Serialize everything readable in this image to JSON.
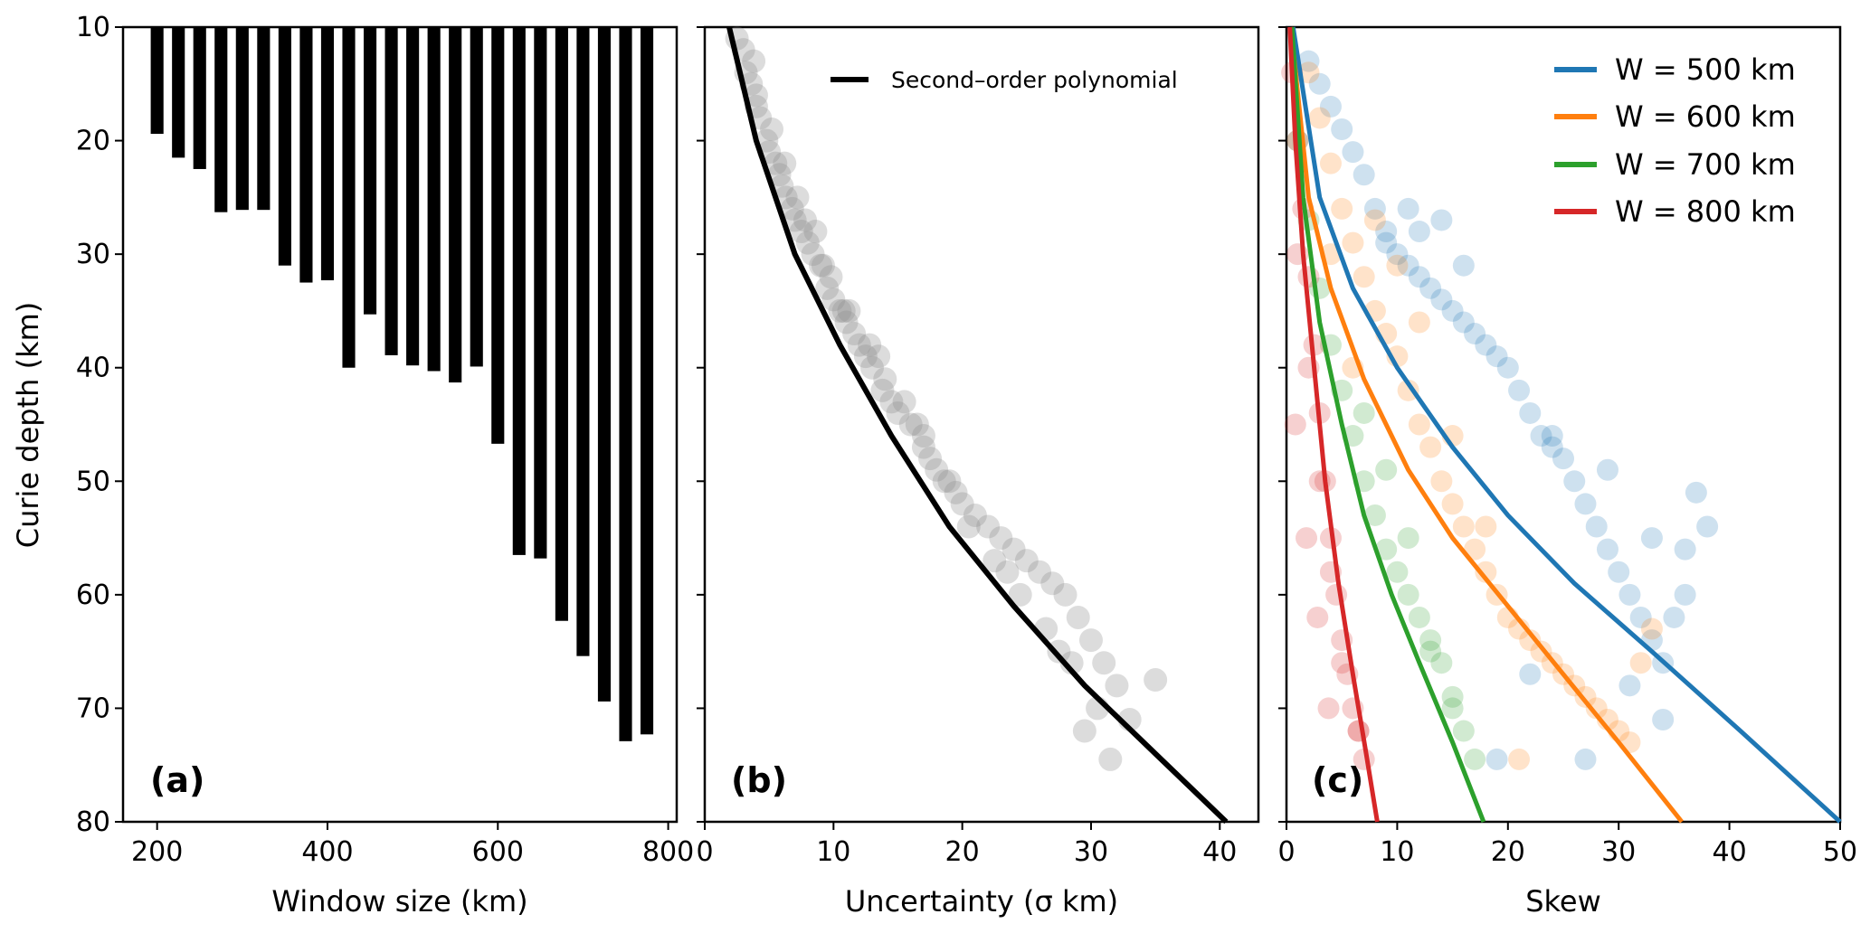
{
  "figure": {
    "ylabel": "Curie depth (km)"
  },
  "colors": {
    "bars": "#000000",
    "scatter_gray": "#8c8c8c",
    "fit_line": "#000000",
    "w500": "#1f77b4",
    "w600": "#ff7f0e",
    "w700": "#2ca02c",
    "w800": "#d62728"
  },
  "chart_data": [
    {
      "type": "bar",
      "panel_label": "(a)",
      "xlabel": "Window size (km)",
      "ylabel": "Curie depth (km)",
      "xlim": [
        160,
        810
      ],
      "ylim": [
        80,
        10
      ],
      "y_inverted": true,
      "xticks": [
        200,
        400,
        600,
        800
      ],
      "yticks": [
        10,
        20,
        30,
        40,
        50,
        60,
        70,
        80
      ],
      "categories": [
        200,
        225,
        250,
        275,
        300,
        325,
        350,
        375,
        400,
        425,
        450,
        475,
        500,
        525,
        550,
        575,
        600,
        625,
        650,
        675,
        700,
        725,
        750,
        775
      ],
      "values": [
        19.4,
        21.5,
        22.5,
        26.3,
        26.1,
        26.1,
        31.0,
        32.5,
        32.3,
        40.0,
        35.3,
        38.9,
        39.8,
        40.3,
        41.3,
        39.9,
        46.7,
        56.5,
        56.8,
        62.3,
        65.4,
        69.4,
        72.9,
        72.3
      ]
    },
    {
      "type": "scatter",
      "panel_label": "(b)",
      "xlabel": "Uncertainty (σ km)",
      "xlim": [
        0,
        43
      ],
      "ylim": [
        80,
        10
      ],
      "y_inverted": true,
      "xticks": [
        0,
        10,
        20,
        30,
        40
      ],
      "legend": [
        "Second–order polynomial"
      ],
      "legend_position": "top-right",
      "fit_curve": {
        "name": "Second–order polynomial",
        "x": [
          1.9,
          4.0,
          7.0,
          10.5,
          14.5,
          19.0,
          24.0,
          29.5,
          35.0,
          40.5
        ],
        "y": [
          10,
          20,
          30,
          38,
          46,
          54,
          61,
          68,
          74,
          80
        ]
      },
      "points_x": [
        2.5,
        3.0,
        3.2,
        3.6,
        4.0,
        4.3,
        4.8,
        5.0,
        5.5,
        6.0,
        6.3,
        6.8,
        7.0,
        7.5,
        8.0,
        8.4,
        9.0,
        9.5,
        10.0,
        10.5,
        11.0,
        11.6,
        12.0,
        12.5,
        13.0,
        13.8,
        14.5,
        15.0,
        16.0,
        17.0,
        17.5,
        18.0,
        19.0,
        20.0,
        21.0,
        22.0,
        23.0,
        24.0,
        25.0,
        26.0,
        27.0,
        28.0,
        29.0,
        30.0,
        31.0,
        32.0,
        33.0,
        35.0,
        4.0,
        5.2,
        6.2,
        7.2,
        8.6,
        9.8,
        11.2,
        12.8,
        14.0,
        15.5,
        17.0,
        18.6,
        20.5,
        22.5,
        24.5,
        26.5,
        28.5,
        30.5,
        3.8,
        5.8,
        7.8,
        9.2,
        10.8,
        13.5,
        16.5,
        19.5,
        23.5,
        27.5,
        29.5,
        31.5
      ],
      "points_y": [
        11,
        12,
        14,
        15,
        17,
        18,
        20,
        21,
        22,
        24,
        25,
        26,
        27,
        28,
        29,
        30,
        31,
        33,
        34,
        35,
        36,
        37,
        38,
        39,
        40,
        42,
        43,
        44,
        45,
        46,
        48,
        49,
        50,
        52,
        53,
        54,
        55,
        56,
        57,
        58,
        59,
        60,
        62,
        64,
        66,
        68,
        71,
        67.5,
        16,
        19,
        22,
        25,
        28,
        32,
        35,
        38,
        41,
        43,
        47,
        50,
        54,
        57,
        60,
        63,
        66,
        70,
        13,
        23,
        27,
        31,
        35,
        39,
        45,
        51,
        58,
        65,
        72,
        74.5
      ]
    },
    {
      "type": "scatter",
      "panel_label": "(c)",
      "xlabel": "Skew",
      "xlim": [
        0,
        50
      ],
      "ylim": [
        80,
        10
      ],
      "y_inverted": true,
      "xticks": [
        0,
        10,
        20,
        30,
        40,
        50
      ],
      "legend_position": "top-right",
      "series": [
        {
          "name": "W = 500 km",
          "legend_label": "W = 500 km",
          "color_key": "w500",
          "curve_x": [
            0.6,
            3,
            6,
            10,
            15,
            20,
            26,
            33,
            41,
            50
          ],
          "curve_y": [
            10,
            25,
            33,
            40,
            47,
            53,
            59,
            65,
            72,
            80
          ],
          "points_x": [
            2,
            3,
            4,
            5,
            6,
            7,
            8,
            9,
            10,
            11,
            12,
            13,
            14,
            15,
            16,
            17,
            18,
            19,
            20,
            21,
            22,
            23,
            24,
            25,
            26,
            27,
            28,
            29,
            30,
            31,
            32,
            33,
            34,
            35,
            36,
            37,
            38,
            12,
            14,
            16,
            9,
            11,
            24,
            29,
            33,
            36,
            31,
            34,
            27,
            19,
            22
          ],
          "points_y": [
            13,
            15,
            17,
            19,
            21,
            23,
            26,
            28,
            30,
            31,
            32,
            33,
            34,
            35,
            36,
            37,
            38,
            39,
            40,
            42,
            44,
            46,
            47,
            48,
            50,
            52,
            54,
            56,
            58,
            60,
            62,
            64,
            66,
            62,
            56,
            51,
            54,
            28,
            27,
            31,
            29,
            26,
            46,
            49,
            55,
            60,
            68,
            71,
            74.5,
            74.5,
            67
          ]
        },
        {
          "name": "W = 600 km",
          "legend_label": "W = 600 km",
          "color_key": "w600",
          "curve_x": [
            0.4,
            2,
            4,
            7,
            11,
            15,
            20,
            25,
            30,
            35.7
          ],
          "curve_y": [
            10,
            25,
            33,
            41,
            49,
            55,
            61,
            67,
            73,
            80
          ],
          "points_x": [
            2,
            3,
            4,
            5,
            6,
            7,
            8,
            9,
            10,
            11,
            12,
            13,
            14,
            15,
            16,
            17,
            18,
            19,
            20,
            21,
            22,
            23,
            24,
            25,
            26,
            27,
            28,
            29,
            30,
            31,
            32,
            33,
            8,
            10,
            12,
            15,
            18,
            21,
            6,
            4
          ],
          "points_y": [
            14,
            18,
            22,
            26,
            29,
            32,
            35,
            37,
            39,
            42,
            45,
            47,
            50,
            52,
            54,
            56,
            58,
            60,
            62,
            63,
            64,
            65,
            66,
            67,
            68,
            69,
            70,
            71,
            72,
            73,
            66,
            63,
            27,
            31,
            36,
            46,
            54,
            74.5,
            40,
            30
          ]
        },
        {
          "name": "W = 700 km",
          "legend_label": "W = 700 km",
          "color_key": "w700",
          "curve_x": [
            0.5,
            1.5,
            3,
            5,
            7,
            9.5,
            12,
            15,
            17.8
          ],
          "curve_y": [
            10,
            25,
            36,
            45,
            53,
            60,
            66,
            73,
            80
          ],
          "points_x": [
            1,
            2,
            3,
            4,
            5,
            6,
            7,
            8,
            9,
            10,
            11,
            12,
            13,
            14,
            15,
            16,
            17,
            7,
            9,
            11,
            13,
            15
          ],
          "points_y": [
            20,
            27,
            33,
            38,
            42,
            46,
            50,
            53,
            56,
            58,
            60,
            62,
            64,
            66,
            69,
            72,
            74.5,
            44,
            49,
            55,
            65,
            70
          ]
        },
        {
          "name": "W = 800 km",
          "legend_label": "W = 800 km",
          "color_key": "w800",
          "curve_x": [
            0.3,
            0.8,
            1.5,
            2.5,
            3.5,
            4.7,
            6.0,
            7.2,
            8.2
          ],
          "curve_y": [
            10,
            20,
            30,
            40,
            50,
            59,
            67,
            74,
            80
          ],
          "points_x": [
            0.5,
            1,
            1.5,
            2,
            2.5,
            3,
            3.5,
            4,
            4.5,
            5,
            5.5,
            6,
            6.5,
            7,
            1,
            2,
            3,
            4,
            5,
            0.8,
            1.8,
            2.8,
            3.8,
            6.5
          ],
          "points_y": [
            14,
            20,
            26,
            32,
            38,
            44,
            50,
            55,
            60,
            64,
            67,
            70,
            72,
            74.5,
            30,
            40,
            50,
            58,
            66,
            45,
            55,
            62,
            70,
            72
          ]
        }
      ]
    }
  ]
}
